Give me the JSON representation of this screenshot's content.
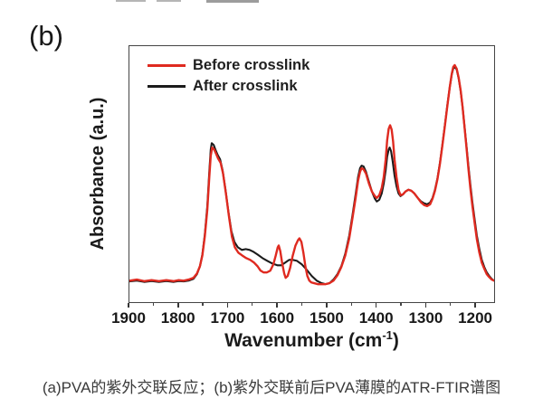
{
  "figure": {
    "panel_label": "(b)",
    "caption": "(a)PVA的紫外交联反应；(b)紫外交联前后PVA薄膜的ATR-FTIR谱图"
  },
  "chart_data": {
    "type": "line",
    "title": "",
    "ylabel": "Absorbance (a.u.)",
    "xlabel": {
      "text": "Wavenumber (cm",
      "sup": "-1",
      "end": ")"
    },
    "xlim": [
      1900,
      1160
    ],
    "x_axis_reversed": true,
    "grid": false,
    "legend_position": "top-left-inside",
    "x_major_ticks": [
      1900,
      1800,
      1700,
      1600,
      1500,
      1400,
      1300,
      1200
    ],
    "x_minor_ticks": [
      1850,
      1750,
      1650,
      1550,
      1450,
      1350,
      1250
    ],
    "y_units": "absorbance (a.u.), normalized 0-1",
    "peak_annotations": [
      {
        "wavenumber": 1733,
        "note": "strong C=O band, both curves"
      },
      {
        "wavenumber": 1597,
        "note": "sharp red-only peak"
      },
      {
        "wavenumber": 1555,
        "note": "sharp red-only peak"
      },
      {
        "wavenumber": 1430,
        "note": "broad band, both curves"
      },
      {
        "wavenumber": 1372,
        "note": "sharp peak, red taller than black"
      },
      {
        "wavenumber": 1240,
        "note": "tallest band, curves overlap"
      }
    ],
    "series": [
      {
        "label": "Before crosslink",
        "color": "#df2a20",
        "stroke_width": 2.4,
        "points": [
          [
            1900,
            0.084
          ],
          [
            1885,
            0.088
          ],
          [
            1870,
            0.082
          ],
          [
            1855,
            0.086
          ],
          [
            1840,
            0.082
          ],
          [
            1825,
            0.086
          ],
          [
            1810,
            0.082
          ],
          [
            1800,
            0.086
          ],
          [
            1790,
            0.084
          ],
          [
            1780,
            0.088
          ],
          [
            1770,
            0.095
          ],
          [
            1763,
            0.112
          ],
          [
            1757,
            0.14
          ],
          [
            1752,
            0.182
          ],
          [
            1747,
            0.256
          ],
          [
            1742,
            0.361
          ],
          [
            1738,
            0.488
          ],
          [
            1735,
            0.572
          ],
          [
            1732,
            0.604
          ],
          [
            1728,
            0.596
          ],
          [
            1724,
            0.579
          ],
          [
            1720,
            0.561
          ],
          [
            1715,
            0.544
          ],
          [
            1710,
            0.502
          ],
          [
            1704,
            0.421
          ],
          [
            1698,
            0.333
          ],
          [
            1692,
            0.256
          ],
          [
            1686,
            0.214
          ],
          [
            1679,
            0.193
          ],
          [
            1671,
            0.182
          ],
          [
            1663,
            0.172
          ],
          [
            1655,
            0.165
          ],
          [
            1647,
            0.154
          ],
          [
            1640,
            0.14
          ],
          [
            1634,
            0.123
          ],
          [
            1628,
            0.116
          ],
          [
            1621,
            0.116
          ],
          [
            1614,
            0.123
          ],
          [
            1608,
            0.147
          ],
          [
            1603,
            0.182
          ],
          [
            1599,
            0.214
          ],
          [
            1597,
            0.221
          ],
          [
            1594,
            0.2
          ],
          [
            1590,
            0.151
          ],
          [
            1586,
            0.112
          ],
          [
            1583,
            0.095
          ],
          [
            1579,
            0.102
          ],
          [
            1574,
            0.133
          ],
          [
            1569,
            0.179
          ],
          [
            1563,
            0.221
          ],
          [
            1558,
            0.242
          ],
          [
            1555,
            0.249
          ],
          [
            1551,
            0.235
          ],
          [
            1547,
            0.193
          ],
          [
            1543,
            0.14
          ],
          [
            1539,
            0.102
          ],
          [
            1535,
            0.084
          ],
          [
            1531,
            0.077
          ],
          [
            1525,
            0.074
          ],
          [
            1518,
            0.07
          ],
          [
            1510,
            0.07
          ],
          [
            1502,
            0.07
          ],
          [
            1494,
            0.074
          ],
          [
            1486,
            0.084
          ],
          [
            1478,
            0.105
          ],
          [
            1470,
            0.137
          ],
          [
            1462,
            0.182
          ],
          [
            1454,
            0.249
          ],
          [
            1447,
            0.333
          ],
          [
            1441,
            0.407
          ],
          [
            1436,
            0.474
          ],
          [
            1432,
            0.509
          ],
          [
            1429,
            0.523
          ],
          [
            1425,
            0.519
          ],
          [
            1420,
            0.502
          ],
          [
            1414,
            0.463
          ],
          [
            1408,
            0.432
          ],
          [
            1402,
            0.414
          ],
          [
            1398,
            0.407
          ],
          [
            1393,
            0.418
          ],
          [
            1388,
            0.446
          ],
          [
            1384,
            0.488
          ],
          [
            1380,
            0.558
          ],
          [
            1377,
            0.632
          ],
          [
            1374,
            0.677
          ],
          [
            1371,
            0.691
          ],
          [
            1368,
            0.674
          ],
          [
            1365,
            0.628
          ],
          [
            1362,
            0.558
          ],
          [
            1358,
            0.488
          ],
          [
            1354,
            0.439
          ],
          [
            1350,
            0.418
          ],
          [
            1345,
            0.421
          ],
          [
            1340,
            0.432
          ],
          [
            1334,
            0.439
          ],
          [
            1328,
            0.435
          ],
          [
            1322,
            0.425
          ],
          [
            1315,
            0.407
          ],
          [
            1308,
            0.389
          ],
          [
            1302,
            0.379
          ],
          [
            1296,
            0.375
          ],
          [
            1290,
            0.382
          ],
          [
            1285,
            0.404
          ],
          [
            1280,
            0.435
          ],
          [
            1275,
            0.481
          ],
          [
            1270,
            0.54
          ],
          [
            1265,
            0.611
          ],
          [
            1260,
            0.688
          ],
          [
            1255,
            0.765
          ],
          [
            1250,
            0.839
          ],
          [
            1246,
            0.891
          ],
          [
            1243,
            0.919
          ],
          [
            1240,
            0.926
          ],
          [
            1236,
            0.912
          ],
          [
            1232,
            0.877
          ],
          [
            1228,
            0.828
          ],
          [
            1224,
            0.761
          ],
          [
            1220,
            0.681
          ],
          [
            1216,
            0.6
          ],
          [
            1212,
            0.519
          ],
          [
            1208,
            0.442
          ],
          [
            1204,
            0.375
          ],
          [
            1200,
            0.316
          ],
          [
            1195,
            0.246
          ],
          [
            1190,
            0.193
          ],
          [
            1185,
            0.154
          ],
          [
            1180,
            0.13
          ],
          [
            1175,
            0.109
          ],
          [
            1170,
            0.098
          ],
          [
            1165,
            0.088
          ],
          [
            1160,
            0.084
          ]
        ]
      },
      {
        "label": "After crosslink",
        "color": "#1b1b1b",
        "stroke_width": 2.1,
        "points": [
          [
            1900,
            0.081
          ],
          [
            1885,
            0.084
          ],
          [
            1870,
            0.079
          ],
          [
            1855,
            0.082
          ],
          [
            1840,
            0.079
          ],
          [
            1825,
            0.082
          ],
          [
            1810,
            0.079
          ],
          [
            1800,
            0.082
          ],
          [
            1790,
            0.081
          ],
          [
            1780,
            0.084
          ],
          [
            1770,
            0.091
          ],
          [
            1763,
            0.109
          ],
          [
            1757,
            0.14
          ],
          [
            1752,
            0.186
          ],
          [
            1747,
            0.263
          ],
          [
            1742,
            0.375
          ],
          [
            1738,
            0.509
          ],
          [
            1735,
            0.596
          ],
          [
            1733,
            0.621
          ],
          [
            1729,
            0.614
          ],
          [
            1725,
            0.593
          ],
          [
            1721,
            0.575
          ],
          [
            1716,
            0.558
          ],
          [
            1711,
            0.516
          ],
          [
            1705,
            0.439
          ],
          [
            1699,
            0.351
          ],
          [
            1693,
            0.277
          ],
          [
            1687,
            0.235
          ],
          [
            1680,
            0.214
          ],
          [
            1672,
            0.204
          ],
          [
            1664,
            0.207
          ],
          [
            1656,
            0.204
          ],
          [
            1648,
            0.196
          ],
          [
            1640,
            0.186
          ],
          [
            1630,
            0.172
          ],
          [
            1620,
            0.161
          ],
          [
            1610,
            0.151
          ],
          [
            1600,
            0.144
          ],
          [
            1592,
            0.144
          ],
          [
            1584,
            0.154
          ],
          [
            1576,
            0.165
          ],
          [
            1568,
            0.165
          ],
          [
            1560,
            0.161
          ],
          [
            1550,
            0.147
          ],
          [
            1540,
            0.126
          ],
          [
            1530,
            0.102
          ],
          [
            1520,
            0.084
          ],
          [
            1510,
            0.074
          ],
          [
            1502,
            0.07
          ],
          [
            1494,
            0.074
          ],
          [
            1486,
            0.088
          ],
          [
            1478,
            0.109
          ],
          [
            1470,
            0.14
          ],
          [
            1462,
            0.189
          ],
          [
            1454,
            0.26
          ],
          [
            1447,
            0.344
          ],
          [
            1441,
            0.421
          ],
          [
            1436,
            0.488
          ],
          [
            1432,
            0.523
          ],
          [
            1429,
            0.533
          ],
          [
            1425,
            0.53
          ],
          [
            1420,
            0.509
          ],
          [
            1414,
            0.47
          ],
          [
            1408,
            0.432
          ],
          [
            1402,
            0.404
          ],
          [
            1398,
            0.393
          ],
          [
            1393,
            0.4
          ],
          [
            1388,
            0.425
          ],
          [
            1384,
            0.463
          ],
          [
            1380,
            0.516
          ],
          [
            1377,
            0.568
          ],
          [
            1374,
            0.596
          ],
          [
            1372,
            0.604
          ],
          [
            1369,
            0.589
          ],
          [
            1366,
            0.551
          ],
          [
            1362,
            0.495
          ],
          [
            1358,
            0.453
          ],
          [
            1354,
            0.425
          ],
          [
            1350,
            0.414
          ],
          [
            1345,
            0.421
          ],
          [
            1340,
            0.432
          ],
          [
            1334,
            0.439
          ],
          [
            1328,
            0.435
          ],
          [
            1322,
            0.425
          ],
          [
            1315,
            0.407
          ],
          [
            1308,
            0.393
          ],
          [
            1302,
            0.386
          ],
          [
            1296,
            0.382
          ],
          [
            1290,
            0.389
          ],
          [
            1285,
            0.407
          ],
          [
            1280,
            0.439
          ],
          [
            1275,
            0.484
          ],
          [
            1270,
            0.544
          ],
          [
            1265,
            0.614
          ],
          [
            1260,
            0.691
          ],
          [
            1255,
            0.768
          ],
          [
            1250,
            0.839
          ],
          [
            1246,
            0.888
          ],
          [
            1243,
            0.912
          ],
          [
            1240,
            0.919
          ],
          [
            1236,
            0.909
          ],
          [
            1232,
            0.874
          ],
          [
            1228,
            0.825
          ],
          [
            1224,
            0.761
          ],
          [
            1220,
            0.684
          ],
          [
            1216,
            0.607
          ],
          [
            1212,
            0.53
          ],
          [
            1208,
            0.456
          ],
          [
            1204,
            0.389
          ],
          [
            1200,
            0.33
          ],
          [
            1195,
            0.26
          ],
          [
            1190,
            0.207
          ],
          [
            1185,
            0.165
          ],
          [
            1180,
            0.137
          ],
          [
            1175,
            0.116
          ],
          [
            1170,
            0.102
          ],
          [
            1165,
            0.091
          ],
          [
            1160,
            0.084
          ]
        ]
      }
    ]
  }
}
